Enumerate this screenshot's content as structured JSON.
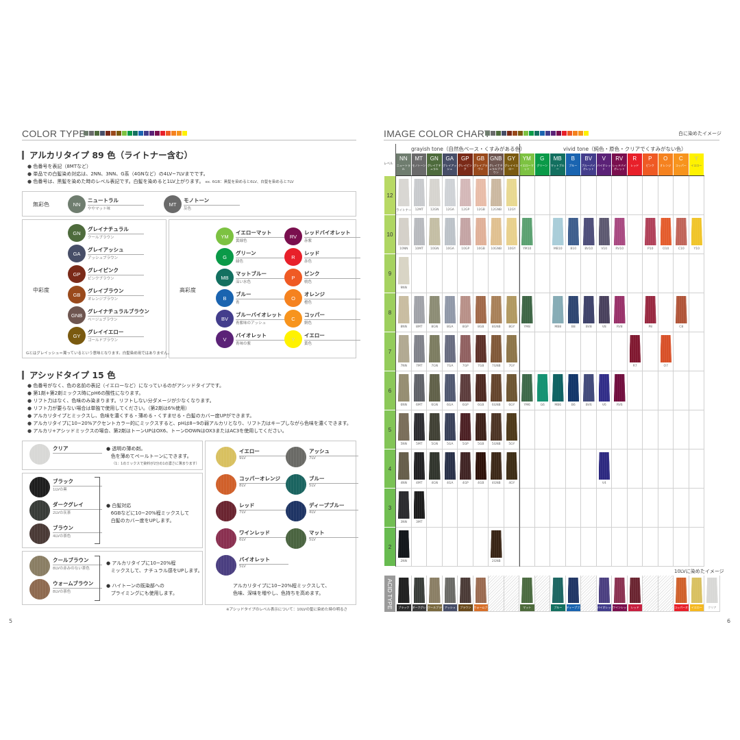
{
  "strip_colors": [
    "#6f7d6f",
    "#6a6a6a",
    "#4e6b3c",
    "#474e68",
    "#7a2a18",
    "#9a4a1c",
    "#7a5a10",
    "#7dc242",
    "#0a9a48",
    "#137060",
    "#1a64b0",
    "#433d8c",
    "#5b2277",
    "#7a0f4e",
    "#e8202a",
    "#ef5a24",
    "#f5821f",
    "#f7941d",
    "#fff200"
  ],
  "left": {
    "title": "COLOR TYPE",
    "alkali": {
      "heading": "アルカリタイプ 89 色（ライトナー含む）",
      "bullets": [
        "色番号を表記（8MTなど）",
        "単品での白髪染め対応は、2NN、3NN、G系（4GNなど）の4LV~7LVまでです。",
        "色番号は、黒髪を染めた時のレベル表記です。白髪を染めると1LV上がります。"
      ],
      "example": "ex. 6GB：黒髪を染めると6LV、白髪を染めると7LV",
      "achromatic": {
        "category": "無彩色",
        "items": [
          {
            "code": "NN",
            "name": "ニュートラル",
            "desc": "ややマット味",
            "color": "#6f7d6f"
          },
          {
            "code": "MT",
            "name": "モノトーン",
            "desc": "灰色",
            "color": "#6a6a6a"
          }
        ]
      },
      "mid": {
        "category": "中彩度",
        "items": [
          {
            "code": "GN",
            "name": "グレイナチュラル",
            "desc": "クールブラウン",
            "color": "#4e6b3c"
          },
          {
            "code": "GA",
            "name": "グレイアッシュ",
            "desc": "アッシュブラウン",
            "color": "#474e68"
          },
          {
            "code": "GP",
            "name": "グレイピンク",
            "desc": "ピンクブラウン",
            "color": "#7a2a18"
          },
          {
            "code": "GB",
            "name": "グレイブラウン",
            "desc": "オレンジブラウン",
            "color": "#9a4a1c"
          },
          {
            "code": "GNB",
            "name": "グレイナチュラルブラウン",
            "desc": "ベージュブラウン",
            "color": "#6e5650"
          },
          {
            "code": "GY",
            "name": "グレイイエロー",
            "desc": "ゴールドブラウン",
            "color": "#7a5a10"
          }
        ],
        "note": "Gとはグレイッシュ＝濁っているという意味となります。白髪染め用ではありません。"
      },
      "high": {
        "category": "高彩度",
        "items": [
          {
            "code": "YM",
            "name": "イエローマット",
            "desc": "黄緑色",
            "color": "#7dc242"
          },
          {
            "code": "G",
            "name": "グリーン",
            "desc": "緑色",
            "color": "#0a9a48"
          },
          {
            "code": "MB",
            "name": "マットブルー",
            "desc": "深い水色",
            "color": "#137060"
          },
          {
            "code": "B",
            "name": "ブルー",
            "desc": "青",
            "color": "#1a64b0"
          },
          {
            "code": "BV",
            "name": "ブルーバイオレット",
            "desc": "青紫味のアッシュ",
            "color": "#433d8c"
          },
          {
            "code": "V",
            "name": "バイオレット",
            "desc": "青味の紫",
            "color": "#5b2277"
          },
          {
            "code": "RV",
            "name": "レッドバイオレット",
            "desc": "赤紫",
            "color": "#7a0f4e"
          },
          {
            "code": "R",
            "name": "レッド",
            "desc": "赤色",
            "color": "#e8202a"
          },
          {
            "code": "P",
            "name": "ピンク",
            "desc": "桃色",
            "color": "#ef5a24"
          },
          {
            "code": "O",
            "name": "オレンジ",
            "desc": "橙色",
            "color": "#f5821f"
          },
          {
            "code": "C",
            "name": "コッパー",
            "desc": "銅色",
            "color": "#f7941d"
          },
          {
            "code": "Y",
            "name": "イエロー",
            "desc": "黄色",
            "color": "#fff200"
          }
        ]
      }
    },
    "acid": {
      "heading": "アシッドタイプ 15 色",
      "bullets": [
        "色番号がなく、色の名前の表記（イエローなど）になっているのがアシッドタイプです。",
        "第1剤+第2剤ミックス時にpH6の酸性になります。",
        "リフト力はなく、色味のみ染まります。リフトしない分ダメージが少なくなります。",
        "リフト力が要らない場合は単独で使用してください。（第2剤は6%使用）",
        "アルカリタイプとミックスし、色味を濃くする・薄める・くすませる・白髪のカバー度UPができます。",
        "アルカリタイプに10~20%アクセントカラー的にミックスすると、pHは8~9の弱アルカリとなり、リフト力はキープしながら色味を濃くできます。",
        "アルカリ+アシッドミックスの場合、第2剤はトーンUPはOX6、トーンDOWNはOX3またはAC3を使用してください。"
      ],
      "clear": {
        "name": "クリア",
        "color": "#d8d8d6",
        "text1": "透明の薄め剤。",
        "text2": "色を薄めてペールトーンにできます。",
        "note": "（1：1のミックスで染料が2分の1の濃さに薄まります）"
      },
      "dark": {
        "items": [
          {
            "name": "ブラック",
            "desc": "1LVの黒",
            "color": "#1e1e1e"
          },
          {
            "name": "ダークグレイ",
            "desc": "2LVの灰茶",
            "color": "#383c38"
          },
          {
            "name": "ブラウン",
            "desc": "4LVの茶色",
            "color": "#4a3a36"
          }
        ],
        "text1": "白髪対応",
        "text2": "6GBなどに10~20%程ミックスして",
        "text3": "白髪のカバー度をUPします。"
      },
      "brown": {
        "items": [
          {
            "name": "クールブラウン",
            "desc": "8LVの赤みのない茶色",
            "color": "#8a7e64"
          },
          {
            "name": "ウォームブラウン",
            "desc": "8LVの茶色",
            "color": "#8e6a50"
          }
        ],
        "text1": "アルカリタイプに10~20%程",
        "text2": "ミックスして、ナチュラル感をUPします。",
        "text3": "ハイトーンの既染部への",
        "text4": "プライミングにも使用します。"
      },
      "vivid": {
        "items": [
          {
            "name": "イエロー",
            "desc": "9LV",
            "color": "#d8c060"
          },
          {
            "name": "アッシュ",
            "desc": "7LV",
            "color": "#6a6a66"
          },
          {
            "name": "コッパーオレンジ",
            "desc": "8LV",
            "color": "#d0602a"
          },
          {
            "name": "ブルー",
            "desc": "5LV",
            "color": "#1a6460"
          },
          {
            "name": "レッド",
            "desc": "7LV",
            "color": "#6a2430"
          },
          {
            "name": "ディープブルー",
            "desc": "4LV",
            "color": "#1e3464"
          },
          {
            "name": "ワインレッド",
            "desc": "6LV",
            "color": "#8a3050"
          },
          {
            "name": "マット",
            "desc": "5LV",
            "color": "#4a6440"
          },
          {
            "name": "バイオレット",
            "desc": "5LV",
            "color": "#4a3e80"
          }
        ],
        "text1": "アルカリタイプに10~20%程ミックスして、",
        "text2": "色味、深味を増やし、色持ちを高めます。"
      },
      "footnote": "※アシッドタイプのレベル表示について：10LVの髪に染めた時の明るさ"
    },
    "page_number": "5"
  },
  "right": {
    "title": "IMAGE COLOR CHART",
    "note": "白に染めたイメージ",
    "level_label": "レベル",
    "grayish": "grayish tone（自然色ベース・くすみがある色）",
    "vivid": "vivid tone（純色・原色・クリアでくすみがない色）",
    "columns": [
      {
        "code": "NN",
        "name": "ニュートラル",
        "color": "#6f7d6f"
      },
      {
        "code": "MT",
        "name": "モノトーン",
        "color": "#6a6a6a"
      },
      {
        "code": "GN",
        "name": "グレイナチュラル",
        "color": "#4e6b3c"
      },
      {
        "code": "GA",
        "name": "グレイアッシュ",
        "color": "#474e68"
      },
      {
        "code": "GP",
        "name": "グレイピンク",
        "color": "#7a2a18"
      },
      {
        "code": "GB",
        "name": "グレイブラウン",
        "color": "#9a4a1c"
      },
      {
        "code": "GNB",
        "name": "グレイナチュラルブラウン",
        "color": "#6e5650"
      },
      {
        "code": "GY",
        "name": "グレイイエロー",
        "color": "#7a5a10"
      },
      {
        "code": "YM",
        "name": "イエローマット",
        "color": "#7dc242"
      },
      {
        "code": "G",
        "name": "グリーン",
        "color": "#0a9a48"
      },
      {
        "code": "MB",
        "name": "マットブルー",
        "color": "#137060"
      },
      {
        "code": "B",
        "name": "ブルー",
        "color": "#1a64b0"
      },
      {
        "code": "BV",
        "name": "ブルーバイオレット",
        "color": "#433d8c"
      },
      {
        "code": "V",
        "name": "バイオレット",
        "color": "#5b2277"
      },
      {
        "code": "RV",
        "name": "レッドバイオレット",
        "color": "#7a0f4e"
      },
      {
        "code": "R",
        "name": "レッド",
        "color": "#e8202a"
      },
      {
        "code": "P",
        "name": "ピンク",
        "color": "#ef5a24"
      },
      {
        "code": "O",
        "name": "オレンジ",
        "color": "#f5821f"
      },
      {
        "code": "C",
        "name": "コッパー",
        "color": "#f7941d"
      },
      {
        "code": "Y",
        "name": "イエロー",
        "color": "#fff200"
      }
    ],
    "rows": [
      {
        "level": "12",
        "cells": [
          [
            "ライトナー",
            "#d8d6d2"
          ],
          [
            "12MT",
            "#c8cacd"
          ],
          [
            "12GN",
            "#d6d4cf"
          ],
          [
            "12GA",
            "#cfd2d6"
          ],
          [
            "12GP",
            "#d4b8b8"
          ],
          [
            "12GB",
            "#e8bca8"
          ],
          [
            "12GNB",
            "#cbb8a0"
          ],
          [
            "12GY",
            "#e8d890"
          ],
          null,
          null,
          null,
          null,
          null,
          null,
          null,
          null,
          null,
          null,
          null,
          null
        ]
      },
      {
        "level": "10",
        "cells": [
          [
            "10NN",
            "#d4d0c8"
          ],
          [
            "10MT",
            "#b8babe"
          ],
          [
            "10GN",
            "#c4bea4"
          ],
          [
            "10GA",
            "#bcc2c8"
          ],
          [
            "10GP",
            "#c4a4a4"
          ],
          [
            "10GB",
            "#e0b098"
          ],
          [
            "10GNB",
            "#e0c090"
          ],
          [
            "10GY",
            "#e8d08c"
          ],
          [
            "YM10",
            "#5aa070"
          ],
          null,
          [
            "MB10",
            "#a8ccd8"
          ],
          [
            "B10",
            "#3c5c8c"
          ],
          [
            "BV10",
            "#4c4c78"
          ],
          [
            "V10",
            "#5c5870"
          ],
          [
            "RV10",
            "#a84880"
          ],
          null,
          [
            "P10",
            "#b04058"
          ],
          [
            "O10",
            "#e45c2c"
          ],
          [
            "C10",
            "#c06458"
          ],
          [
            "Y10",
            "#f0c428"
          ]
        ]
      },
      {
        "level": "9",
        "cells": [
          [
            "9NN",
            "#d8d4c4"
          ],
          null,
          null,
          null,
          null,
          null,
          null,
          null,
          null,
          null,
          null,
          null,
          null,
          null,
          null,
          null,
          null,
          null,
          null,
          null
        ]
      },
      {
        "level": "8",
        "cells": [
          [
            "8NN",
            "#c8bca0"
          ],
          [
            "8MT",
            "#a0a2a8"
          ],
          [
            "8GN",
            "#8c8c74"
          ],
          [
            "8GA",
            "#9098a8"
          ],
          [
            "8GP",
            "#b89088"
          ],
          [
            "8GB",
            "#a06848"
          ],
          [
            "8GNB",
            "#a88058"
          ],
          [
            "8GY",
            "#b09860"
          ],
          [
            "YM8",
            "#3c6444"
          ],
          null,
          [
            "MB8",
            "#84aab4"
          ],
          [
            "B8",
            "#2c4470"
          ],
          [
            "BV8",
            "#3c4068"
          ],
          [
            "V8",
            "#48405c"
          ],
          [
            "RV8",
            "#983068"
          ],
          null,
          [
            "P8",
            "#982840"
          ],
          null,
          [
            "C8",
            "#b05438"
          ],
          null
        ]
      },
      {
        "level": "7",
        "cells": [
          [
            "7NN",
            "#b0a890"
          ],
          [
            "7MT",
            "#80828a"
          ],
          [
            "7GN",
            "#7c7c60"
          ],
          [
            "7GA",
            "#686c80"
          ],
          [
            "7GP",
            "#906060"
          ],
          [
            "7GB",
            "#5c3028"
          ],
          [
            "7GNB",
            "#805838"
          ],
          [
            "7GY",
            "#8c7448"
          ],
          null,
          null,
          null,
          null,
          null,
          null,
          null,
          [
            "R7",
            "#801830"
          ],
          null,
          [
            "O7",
            "#d85028"
          ],
          null,
          null
        ]
      },
      {
        "level": "6",
        "cells": [
          [
            "6NN",
            "#948c70"
          ],
          [
            "6MT",
            "#606268"
          ],
          [
            "6GN",
            "#606048"
          ],
          [
            "6GA",
            "#505870"
          ],
          [
            "6GP",
            "#5c3c3c"
          ],
          [
            "6GB",
            "#4c2820"
          ],
          [
            "6GNB",
            "#64442c"
          ],
          [
            "6GY",
            "#6c5430"
          ],
          [
            "YM6",
            "#3c6848"
          ],
          [
            "G6",
            "#109070"
          ],
          [
            "MB6",
            "#0c6060"
          ],
          [
            "B6",
            "#103468"
          ],
          [
            "BV6",
            "#404878"
          ],
          [
            "V6",
            "#302c88"
          ],
          [
            "RV6",
            "#700c3c"
          ],
          null,
          null,
          null,
          null,
          null
        ]
      },
      {
        "level": "5",
        "cells": [
          [
            "5NN",
            "#786c58"
          ],
          [
            "5MT",
            "#2c2c30"
          ],
          [
            "5GN",
            "#404034"
          ],
          [
            "5GA",
            "#384058"
          ],
          [
            "5GP",
            "#4c2024"
          ],
          [
            "5GB",
            "#3c2018"
          ],
          [
            "5GNB",
            "#4c3424"
          ],
          [
            "5GY",
            "#4c3818"
          ],
          null,
          null,
          null,
          null,
          null,
          null,
          null,
          null,
          null,
          null,
          null,
          null
        ]
      },
      {
        "level": "4",
        "cells": [
          [
            "4NN",
            "#645c48"
          ],
          [
            "4MT",
            "#202022"
          ],
          [
            "4GN",
            "#30342c"
          ],
          [
            "4GA",
            "#283048"
          ],
          [
            "4GP",
            "#402424"
          ],
          [
            "4GB",
            "#2c1008"
          ],
          [
            "4GNB",
            "#3c2818"
          ],
          [
            "4GY",
            "#3c2c14"
          ],
          null,
          null,
          null,
          null,
          null,
          [
            "V4",
            "#2c2880"
          ],
          null,
          null,
          null,
          null,
          null,
          null
        ]
      },
      {
        "level": "3",
        "cells": [
          [
            "3NN",
            "#28282c"
          ],
          [
            "3MT",
            "#1c1c1c"
          ],
          null,
          null,
          null,
          null,
          null,
          null,
          null,
          null,
          null,
          null,
          null,
          null,
          null,
          null,
          null,
          null,
          null,
          null
        ]
      },
      {
        "level": "2",
        "cells": [
          [
            "2NN",
            "#101418"
          ],
          null,
          null,
          null,
          null,
          null,
          [
            "2GNB",
            "#382414"
          ],
          null,
          null,
          null,
          null,
          null,
          null,
          null,
          null,
          null,
          null,
          null,
          null,
          null
        ]
      }
    ],
    "acid_note": "10LVに染めたイメージ",
    "acid_label": "ACID TYPE",
    "acid_cells": [
      [
        "ブラック",
        "#1e1e1e",
        "#2a2a2a"
      ],
      [
        "ダークグレイ",
        "#383c38",
        "#3a3a3a"
      ],
      [
        "クールブラウン",
        "#8a7e64",
        "#7a6a40"
      ],
      [
        "アッシュ",
        "#6a6a66",
        "#474e68"
      ],
      [
        "ブラウン",
        "#4a3a36",
        "#6a4a1c"
      ],
      [
        "ウォームブラウン",
        "#9a6a50",
        "#d8702a"
      ],
      null,
      null,
      [
        "マット",
        "#4a6a40",
        "#4e6b3c"
      ],
      null,
      [
        "ブルー",
        "#1a6460",
        "#137060"
      ],
      [
        "ディープブルー",
        "#1e3464",
        "#1a64b0"
      ],
      null,
      [
        "バイオレット",
        "#4a3e80",
        "#433d8c"
      ],
      [
        "ワインレッド",
        "#8a3050",
        "#7a0f4e"
      ],
      [
        "レッド",
        "#6a2430",
        "#c82040"
      ],
      null,
      null,
      [
        "コッパーオレンジ",
        "#d0602a",
        "#e8202a"
      ],
      [
        "イエロー",
        "#d8c060",
        "#f5b820"
      ],
      [
        "クリア",
        "#d8d8d6",
        "#ffffff"
      ]
    ],
    "page_number": "6"
  }
}
